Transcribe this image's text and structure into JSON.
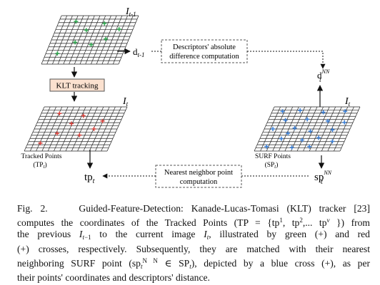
{
  "figure": {
    "frame_labels": {
      "prev": "I",
      "prev_sub": "t-1",
      "tracked": "I",
      "tracked_sub": "t",
      "surf": "I",
      "surf_sub": "t"
    },
    "descriptor_box": [
      "Descriptors' absolute",
      "difference computation"
    ],
    "klt_box": "KLT tracking",
    "nn_box": [
      "Nearest neighbor point",
      "computation"
    ],
    "d_prev": "d",
    "d_prev_sub": "t-1",
    "d_nn": "d",
    "d_nn_sup": "NN",
    "d_nn_sub": "t",
    "tp_caption": [
      "Tracked Points",
      "(TP"
    ],
    "tp_caption_sub": "t",
    "sp_caption": [
      "SURF Points",
      "(SP"
    ],
    "sp_caption_sub": "t",
    "tp_label": "tp",
    "tp_label_sub": "t",
    "sp_label": "sp",
    "sp_label_sup": "NN",
    "sp_label_sub": "t",
    "colors": {
      "grid": "#222222",
      "green": "#2fa84f",
      "red": "#d9403a",
      "blue": "#3a7fd6",
      "klt_box_bg": "#fbe1cf",
      "box_border": "#555555"
    }
  },
  "caption": {
    "fig_label": "Fig. 2.",
    "title": "Guided-Feature-Detection: Kanade-Lucas-Tomasi (KLT) tracker [23]",
    "l2_a": "computes the coordinates of the Tracked Points (TP = {tp",
    "l2_b": ", tp",
    "l2_c": ",... tp",
    "l2_d": " }) from",
    "l3_a": "the previous ",
    "l3_b": " to the current image ",
    "l3_c": ", illustrated by green (+) and red",
    "l4": "(+) crosses, respectively. Subsequently, they are matched with their nearest",
    "l5_a": "neighboring SURF point (sp",
    "l5_b": " ∈ SP",
    "l5_c": "), depicted by a blue cross (+), as per",
    "l6": "their points' coordinates and descriptors' distance."
  }
}
